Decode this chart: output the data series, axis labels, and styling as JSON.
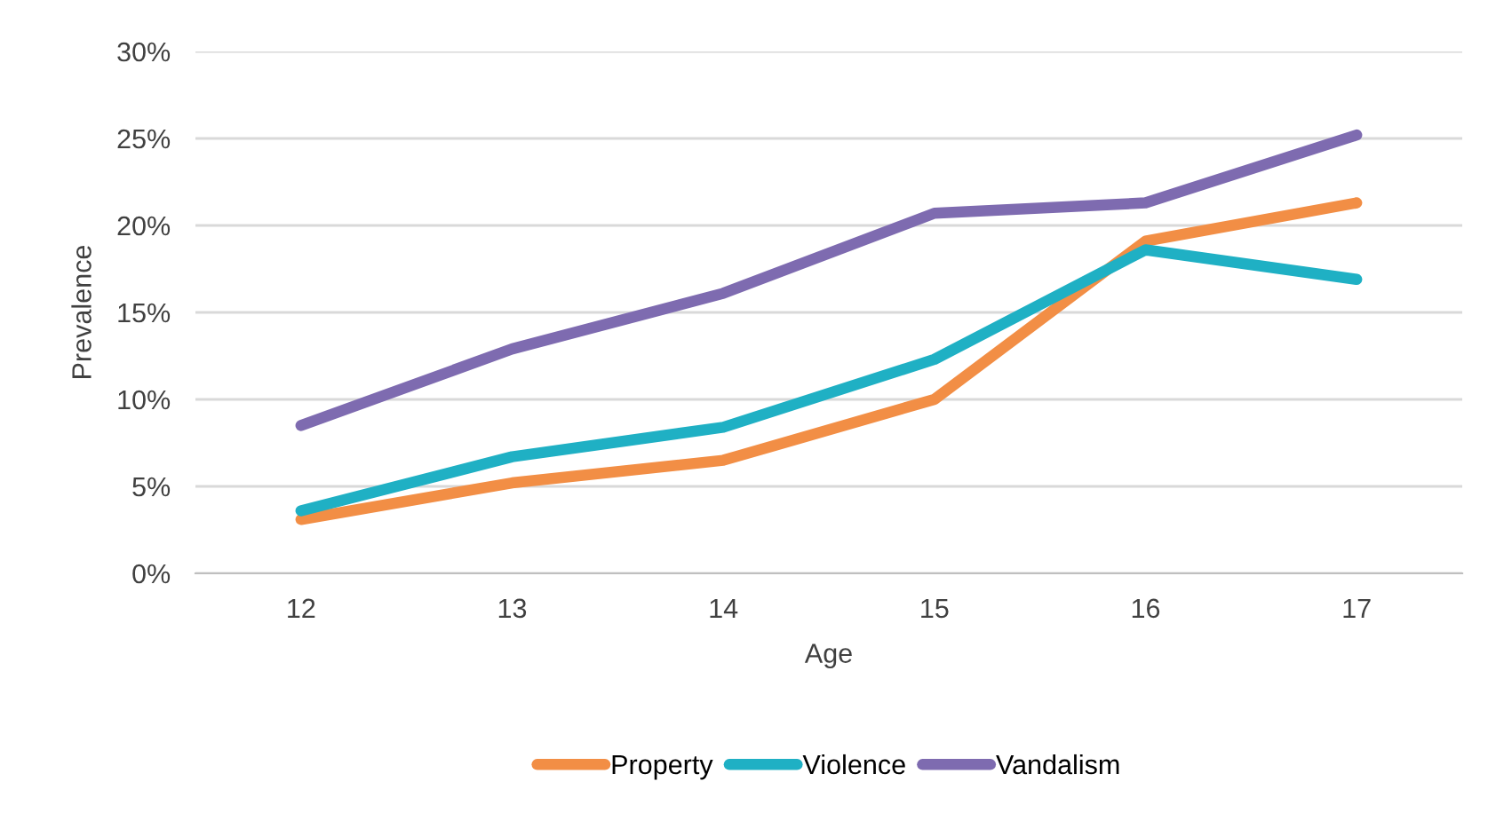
{
  "chart_data": {
    "type": "line",
    "xlabel": "Age",
    "ylabel": "Prevalence",
    "categories": [
      "12",
      "13",
      "14",
      "15",
      "16",
      "17"
    ],
    "series": [
      {
        "name": "Property",
        "color": "#f28e45",
        "values": [
          3.1,
          5.2,
          6.5,
          10.0,
          19.1,
          21.3
        ]
      },
      {
        "name": "Violence",
        "color": "#1fb0c4",
        "values": [
          3.6,
          6.7,
          8.4,
          12.3,
          18.6,
          16.9
        ]
      },
      {
        "name": "Vandalism",
        "color": "#7e6bb0",
        "values": [
          8.5,
          12.9,
          16.1,
          20.7,
          21.3,
          25.2
        ]
      }
    ],
    "ylim": [
      0,
      30
    ],
    "yticks": [
      {
        "value": 0,
        "label": "0%"
      },
      {
        "value": 5,
        "label": "5%"
      },
      {
        "value": 10,
        "label": "10%"
      },
      {
        "value": 15,
        "label": "15%"
      },
      {
        "value": 20,
        "label": "20%"
      },
      {
        "value": 25,
        "label": "25%"
      },
      {
        "value": 30,
        "label": "30%"
      }
    ],
    "grid": "y",
    "legend": "bottom",
    "marker": "none",
    "line_style": "solid"
  }
}
